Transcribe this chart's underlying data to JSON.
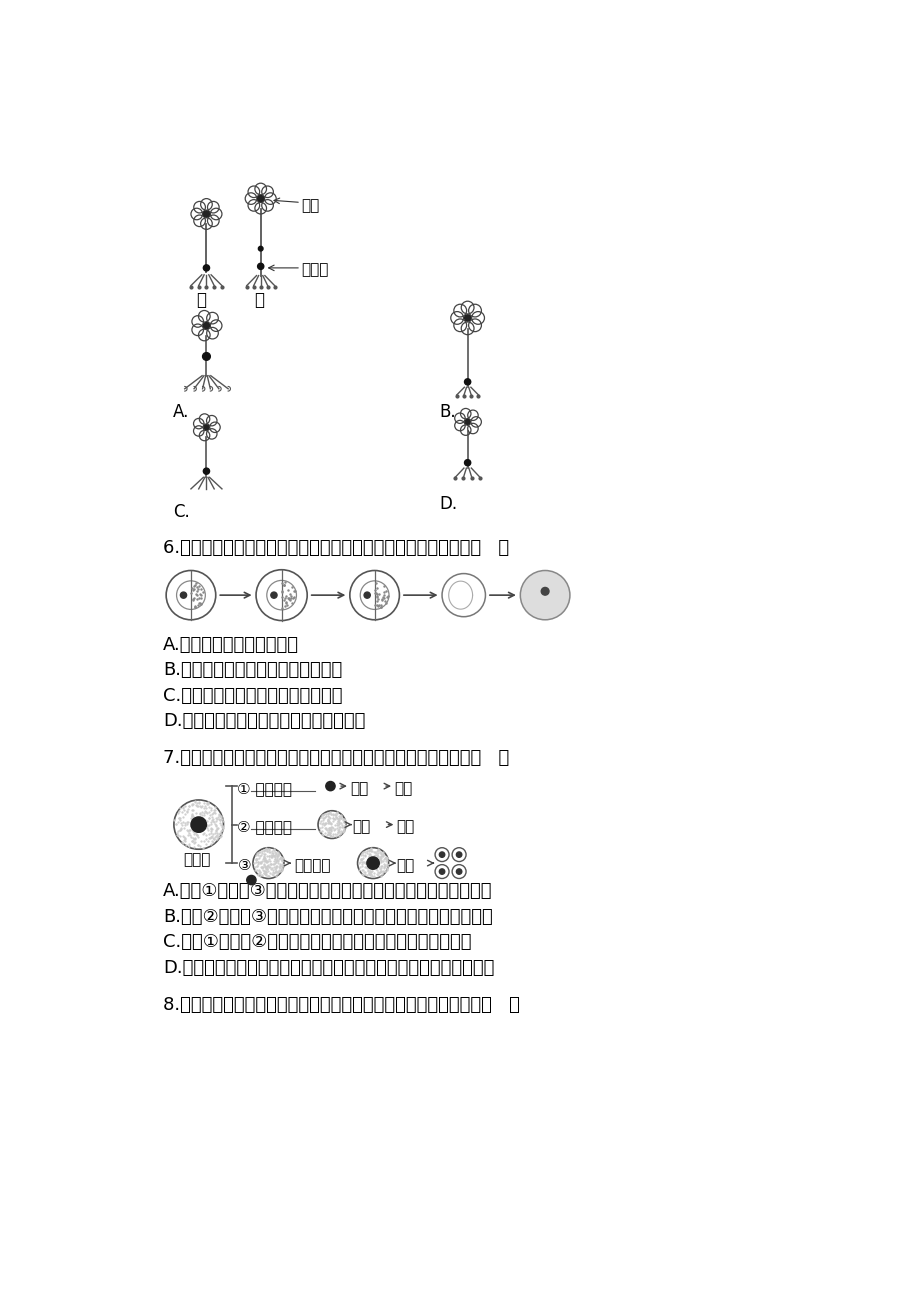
{
  "bg_color": "#ffffff",
  "text_color": "#000000",
  "content": {
    "section6_question": "6.下图所示为科学家进行的蠊蠊受精卵横蕊实验。该图最能说明（   ）",
    "section6_options": [
      "A.细胞核控制着细胞的性状",
      "B.细胞质与细胞分裂、分化密切相关",
      "C.细胞核与细胞分裂、分化密切相关",
      "D.细胞质和细胞核共同控制着细胞的性状"
    ],
    "section7_question": "7.以动物受精卵为实验材料进行以下实验，有关分析中正确的是（   ）",
    "section7_options": [
      "A.实验①和实验③说明了细胞核对维持细胞正常生命活动的重要性",
      "B.实验②和实验③说明了细胞质对维持细胞正常生命活动的重要性",
      "C.实验①和实验②说明了细胞核是细胞遗传和代谢的控制中心",
      "D.该实验结果可以说明细胞保持完整性才能维持细胞的正常生命活动"
    ],
    "section8_question": "8.如图为某种生物的细胞核及相关结构示意图，有关叙述正确的是（   ）"
  }
}
